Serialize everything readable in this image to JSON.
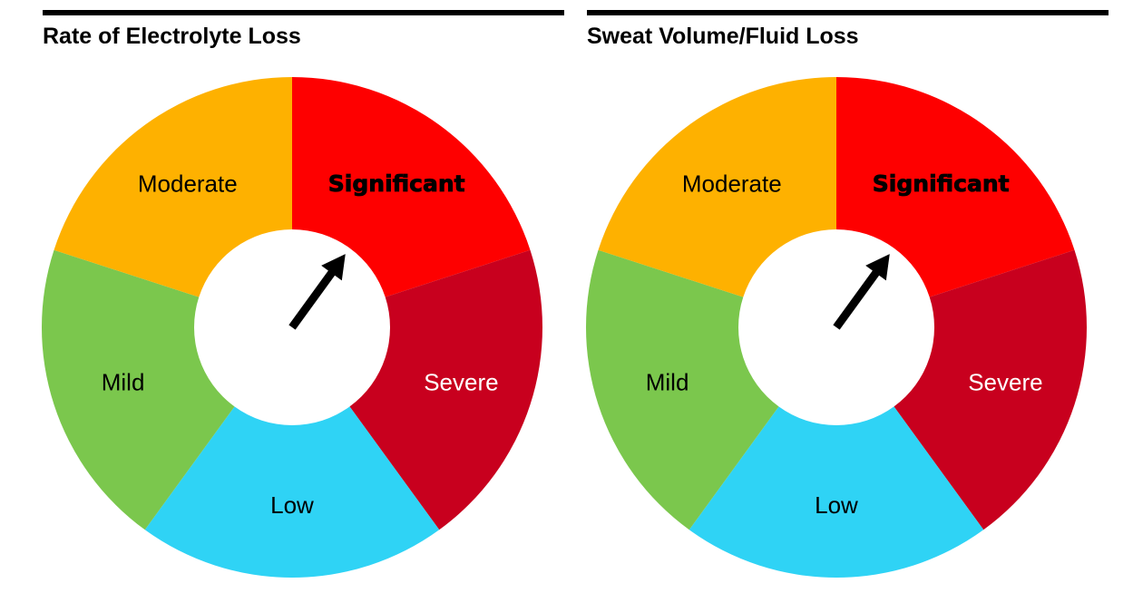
{
  "chart_data": [
    {
      "type": "pie",
      "title": "Rate of Electrolyte Loss",
      "segments": [
        {
          "label": "Significant",
          "value": 1,
          "color": "#fe0000",
          "text_color": "#000000"
        },
        {
          "label": "Severe",
          "value": 1,
          "color": "#c8001e",
          "text_color": "#ffffff"
        },
        {
          "label": "Low",
          "value": 1,
          "color": "#2fd3f5",
          "text_color": "#000000"
        },
        {
          "label": "Mild",
          "value": 1,
          "color": "#7bc74d",
          "text_color": "#000000"
        },
        {
          "label": "Moderate",
          "value": 1,
          "color": "#feb100",
          "text_color": "#000000"
        }
      ],
      "indicator": "Significant"
    },
    {
      "type": "pie",
      "title": "Sweat Volume/Fluid Loss",
      "segments": [
        {
          "label": "Significant",
          "value": 1,
          "color": "#fe0000",
          "text_color": "#000000"
        },
        {
          "label": "Severe",
          "value": 1,
          "color": "#c8001e",
          "text_color": "#ffffff"
        },
        {
          "label": "Low",
          "value": 1,
          "color": "#2fd3f5",
          "text_color": "#000000"
        },
        {
          "label": "Mild",
          "value": 1,
          "color": "#7bc74d",
          "text_color": "#000000"
        },
        {
          "label": "Moderate",
          "value": 1,
          "color": "#feb100",
          "text_color": "#000000"
        }
      ],
      "indicator": "Significant"
    }
  ]
}
